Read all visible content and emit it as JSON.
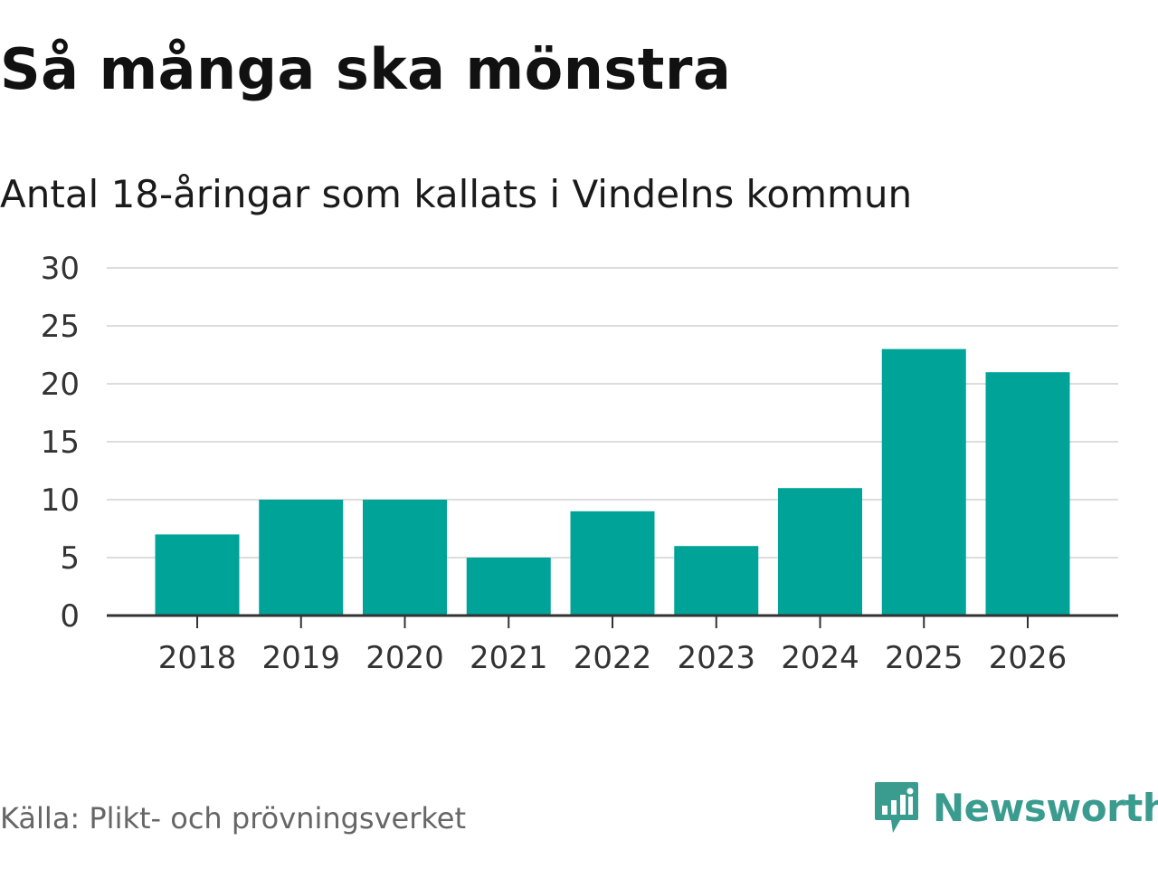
{
  "brand": {
    "name": "Newsworthy",
    "logo_icon": "bar-chart-speech-bubble-icon",
    "color": "#3a9b8f"
  },
  "source": "Källa: Plikt- och prövningsverket",
  "chart_data": {
    "type": "bar",
    "title": "Så många ska mönstra",
    "subtitle": "Antal 18-åringar som kallats i Vindelns kommun",
    "xlabel": "",
    "ylabel": "",
    "categories": [
      "2018",
      "2019",
      "2020",
      "2021",
      "2022",
      "2023",
      "2024",
      "2025",
      "2026"
    ],
    "values": [
      7,
      10,
      10,
      5,
      9,
      6,
      11,
      23,
      21
    ],
    "ylim": [
      0,
      30
    ],
    "yticks": [
      "0",
      "5",
      "10",
      "15",
      "20",
      "25",
      "30"
    ],
    "bar_color": "#00a398",
    "gridlines": true,
    "legend": "none"
  }
}
